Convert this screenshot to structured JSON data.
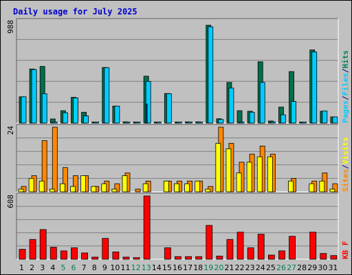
{
  "chart_data": {
    "type": "bar",
    "title": "Daily usage for July 2025",
    "categories": [
      "1",
      "2",
      "3",
      "4",
      "5",
      "6",
      "7",
      "8",
      "9",
      "10",
      "11",
      "12",
      "13",
      "14",
      "15",
      "16",
      "17",
      "18",
      "19",
      "20",
      "21",
      "22",
      "23",
      "24",
      "25",
      "26",
      "27",
      "28",
      "29",
      "30",
      "31"
    ],
    "weekend_days": [
      "5",
      "6",
      "12",
      "13",
      "19",
      "20",
      "26",
      "27"
    ],
    "panels": [
      {
        "max_label": "988",
        "ylim": [
          0,
          988
        ],
        "side_labels": [
          "Pages",
          "/",
          "Files",
          "/",
          "Hits"
        ],
        "series": [
          {
            "name": "Hits",
            "color": "#006f4d",
            "values": [
              255,
              525,
              550,
              40,
              120,
              250,
              105,
              10,
              540,
              165,
              12,
              10,
              455,
              10,
              287,
              10,
              12,
              12,
              950,
              42,
              395,
              120,
              115,
              595,
              20,
              155,
              500,
              10,
              710,
              115,
              60
            ]
          },
          {
            "name": "Files",
            "color": "#00ccff",
            "values": [
              255,
              520,
              285,
              10,
              100,
              245,
              70,
              10,
              538,
              165,
              10,
              10,
              405,
              10,
              285,
              10,
              10,
              10,
              935,
              35,
              340,
              10,
              105,
              395,
              12,
              80,
              210,
              10,
              690,
              118,
              60
            ]
          },
          {
            "name": "Pages",
            "color": "#00ccff",
            "values": [
              0,
              0,
              0,
              0,
              0,
              0,
              0,
              0,
              0,
              0,
              0,
              0,
              185,
              0,
              0,
              0,
              0,
              0,
              0,
              0,
              0,
              0,
              0,
              0,
              0,
              0,
              0,
              0,
              0,
              0,
              0
            ]
          }
        ]
      },
      {
        "max_label": "24",
        "ylim": [
          0,
          24
        ],
        "side_labels": [
          "Sites",
          "/",
          "Visits"
        ],
        "series": [
          {
            "name": "Visits",
            "color": "#ff8800",
            "values": [
              2,
              6,
              19,
              24,
              9,
              6,
              6,
              2,
              4,
              3,
              7,
              1,
              4,
              0,
              4,
              4,
              4,
              4,
              2,
              24,
              18,
              11,
              14,
              17,
              14,
              0,
              5,
              0,
              4,
              7,
              3
            ]
          },
          {
            "name": "Sites",
            "color": "#ffff00",
            "values": [
              1,
              5,
              4,
              1,
              3,
              2,
              6,
              2,
              3,
              1,
              6,
              0,
              3,
              0,
              4,
              3,
              3,
              4,
              1,
              18,
              16,
              7,
              11,
              13,
              13,
              0,
              4,
              0,
              3,
              4,
              1
            ]
          }
        ]
      },
      {
        "max_label": "608",
        "ylim": [
          0,
          608
        ],
        "side_labels": [
          "KB",
          "F"
        ],
        "series": [
          {
            "name": "KB F",
            "color": "#ff0000",
            "values": [
              95,
              190,
              285,
              115,
              80,
              110,
              60,
              20,
              200,
              70,
              20,
              15,
              608,
              0,
              110,
              25,
              25,
              25,
              325,
              30,
              190,
              260,
              110,
              240,
              40,
              80,
              220,
              0,
              260,
              55,
              35
            ]
          }
        ]
      }
    ]
  },
  "colors": {
    "frame_bg": "#c0c0c0",
    "plot_bg": "#c0c0c0",
    "grid": "#808080",
    "title": "#0000cc",
    "weekday_label": "#000000",
    "weekend_label": "#00805a"
  }
}
